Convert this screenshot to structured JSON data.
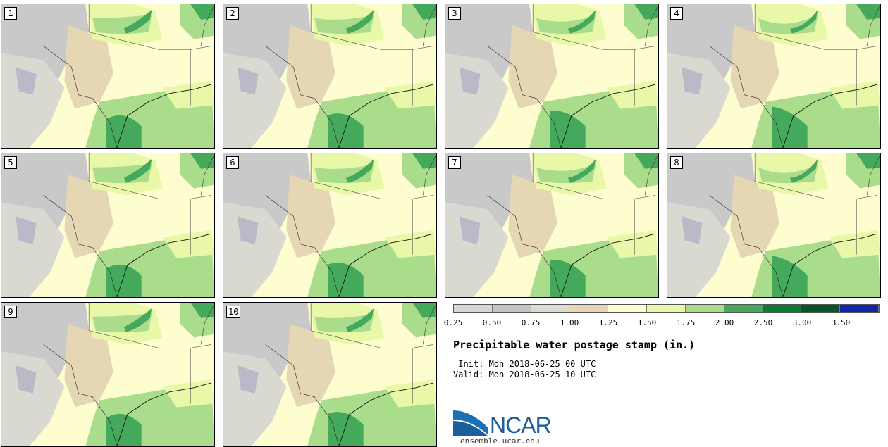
{
  "stamps": [
    {
      "label": "1"
    },
    {
      "label": "2"
    },
    {
      "label": "3"
    },
    {
      "label": "4"
    },
    {
      "label": "5"
    },
    {
      "label": "6"
    },
    {
      "label": "7"
    },
    {
      "label": "8"
    },
    {
      "label": "9"
    },
    {
      "label": "10"
    }
  ],
  "legend": {
    "colors": [
      "#d6d6d6",
      "#c4c4c4",
      "#dcdcd4",
      "#e6d7b4",
      "#fdfdcf",
      "#e8f8a8",
      "#a9dd8c",
      "#44a95a",
      "#0b7a37",
      "#075428",
      "#1026a8"
    ],
    "ticks": [
      "0.25",
      "0.50",
      "0.75",
      "1.00",
      "1.25",
      "1.50",
      "1.75",
      "2.00",
      "2.50",
      "3.00",
      "3.50"
    ]
  },
  "title": "Precipitable water postage stamp (in.)",
  "init": " Init: Mon 2018-06-25 00 UTC",
  "valid": "Valid: Mon 2018-06-25 10 UTC",
  "logo": {
    "text": "NCAR",
    "url": "ensemble.ucar.edu"
  }
}
